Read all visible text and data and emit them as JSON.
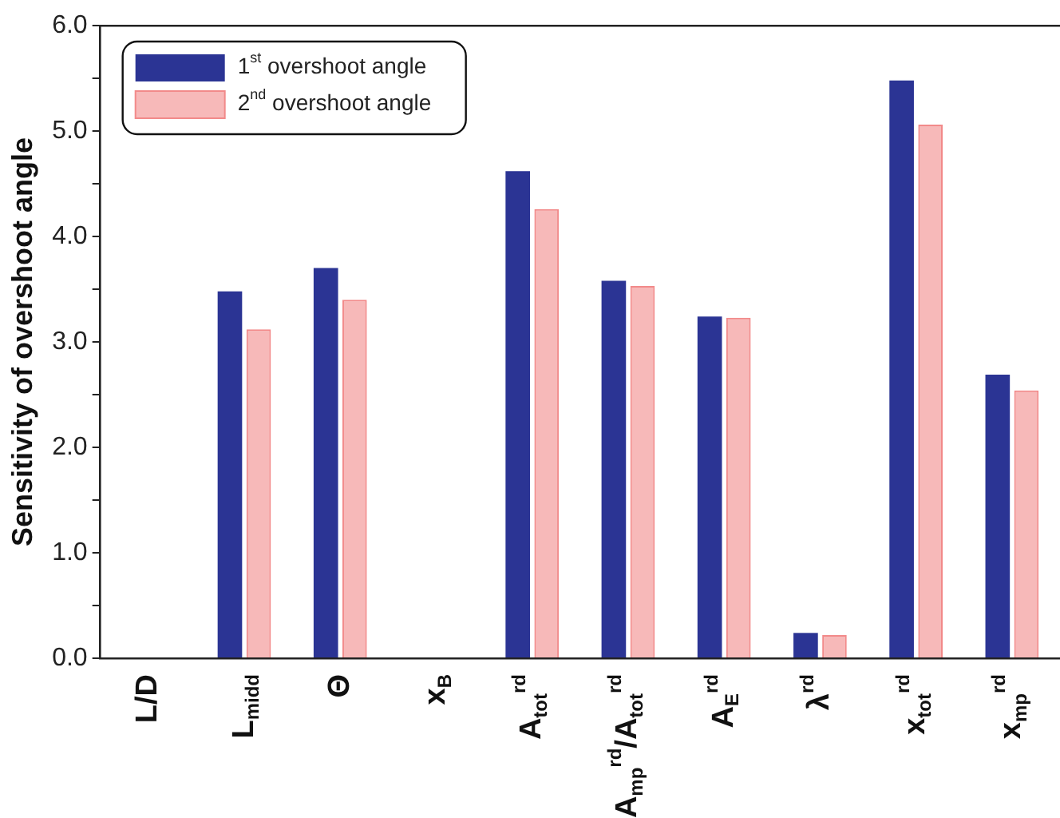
{
  "chart_data": {
    "type": "bar",
    "ylabel": "Sensitivity of overshoot angle",
    "categories": [
      "L/D",
      "L$_{midd}$",
      "Θ",
      "x$_{B}$",
      "A$_{tot}$$^{rd}$",
      "A$_{mp}$$^{rd}$/A$_{tot}$$^{rd}$",
      "A$_{E}$$^{rd}$",
      "λ$^{rd}$",
      "x$_{tot}$$^{rd}$",
      "x$_{mp}$$^{rd}$"
    ],
    "series": [
      {
        "name": "1$^{st}$ overshoot angle",
        "color": "#2b3494",
        "values": [
          0,
          3.48,
          3.7,
          0,
          4.62,
          3.58,
          3.24,
          0.24,
          5.48,
          2.69
        ]
      },
      {
        "name": "2$^{nd}$ overshoot angle",
        "color": "#f28a8a",
        "values": [
          0,
          3.12,
          3.4,
          0,
          4.26,
          3.53,
          3.23,
          0.22,
          5.06,
          2.54
        ]
      }
    ],
    "ylim": [
      0,
      6
    ],
    "yticks": [
      {
        "value": 0,
        "label": "0.0"
      },
      {
        "value": 0.5,
        "label": null
      },
      {
        "value": 1,
        "label": "1.0"
      },
      {
        "value": 1.5,
        "label": null
      },
      {
        "value": 2,
        "label": "2.0"
      },
      {
        "value": 2.5,
        "label": null
      },
      {
        "value": 3,
        "label": "3.0"
      },
      {
        "value": 3.5,
        "label": null
      },
      {
        "value": 4,
        "label": "4.0"
      },
      {
        "value": 4.5,
        "label": null
      },
      {
        "value": 5,
        "label": "5.0"
      },
      {
        "value": 5.5,
        "label": null
      },
      {
        "value": 6,
        "label": "6.0"
      }
    ],
    "grid": false,
    "legend": "top left"
  }
}
